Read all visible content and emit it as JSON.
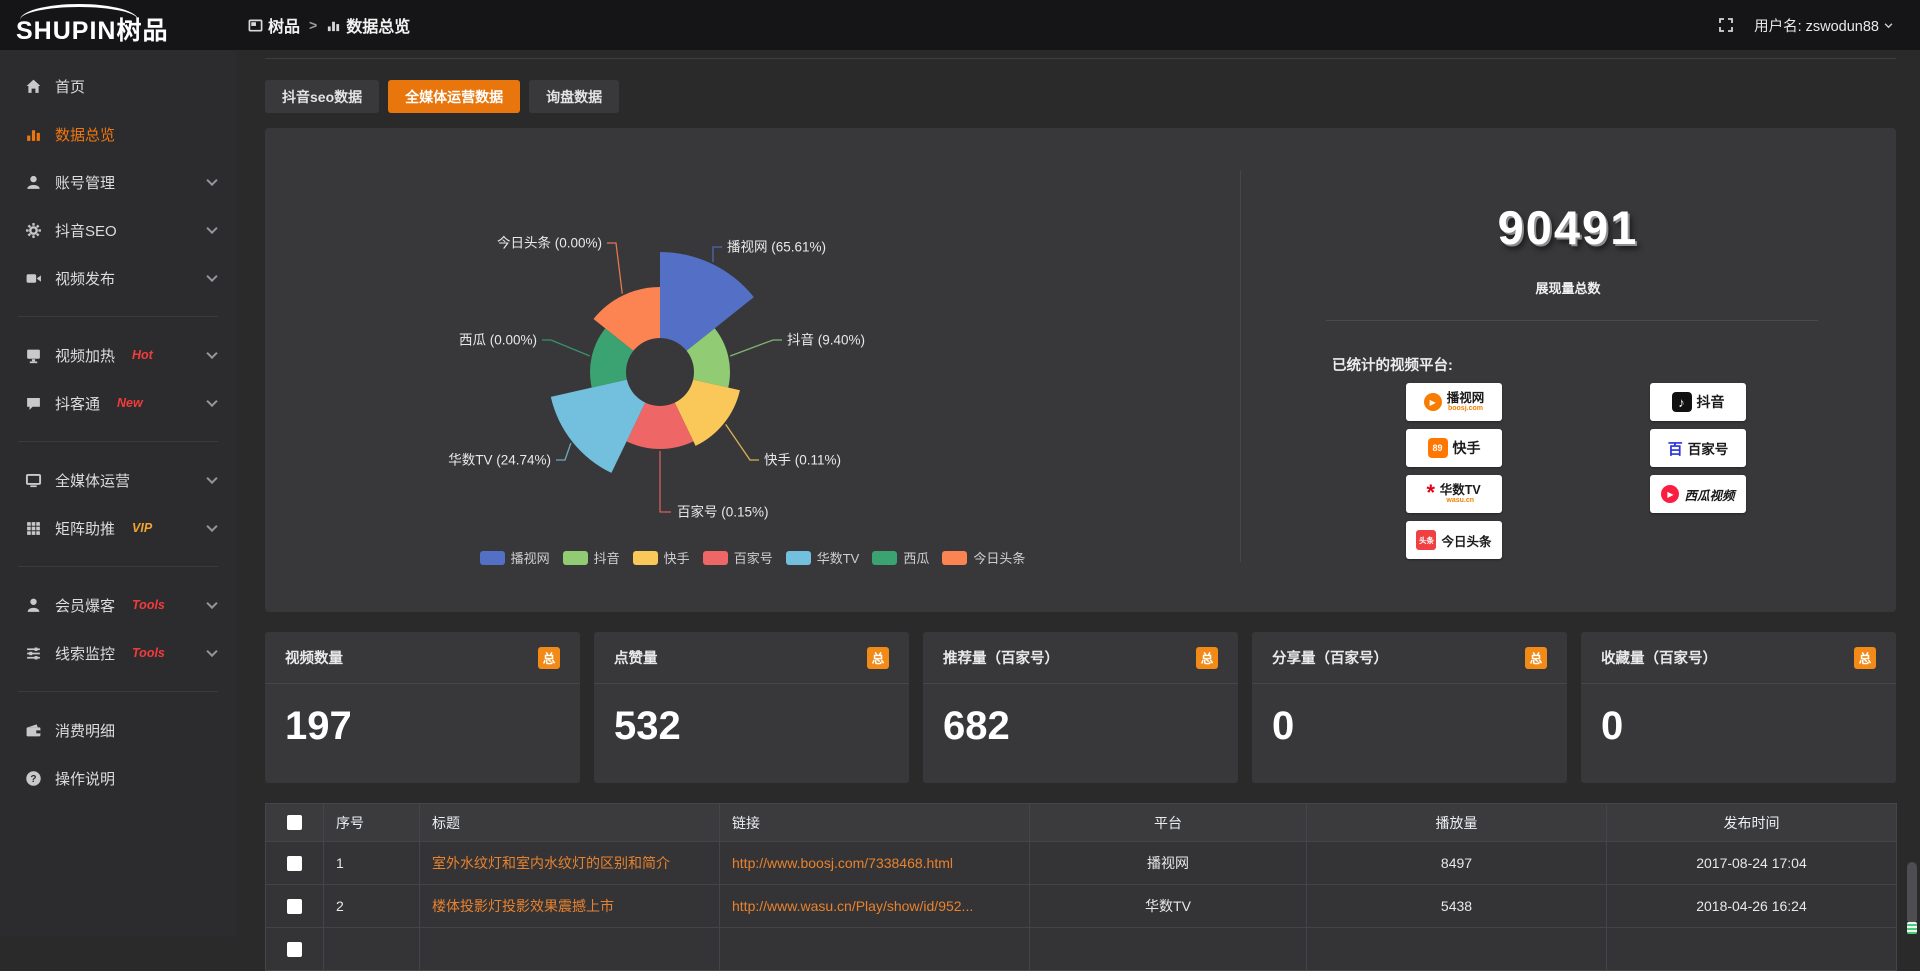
{
  "topbar": {
    "logo_text": "SHUPIN树品",
    "breadcrumb_root": "树品",
    "breadcrumb_sep": ">",
    "breadcrumb_current": "数据总览",
    "username_label": "用户名: zswodun88"
  },
  "sidebar": {
    "items": [
      {
        "label": "首页"
      },
      {
        "label": "数据总览"
      },
      {
        "label": "账号管理"
      },
      {
        "label": "抖音SEO"
      },
      {
        "label": "视频发布"
      },
      {
        "label": "视频加热",
        "badge": "Hot"
      },
      {
        "label": "抖客通",
        "badge": "New"
      },
      {
        "label": "全媒体运营"
      },
      {
        "label": "矩阵助推",
        "badge": "VIP"
      },
      {
        "label": "会员爆客",
        "badge": "Tools"
      },
      {
        "label": "线索监控",
        "badge": "Tools"
      },
      {
        "label": "消费明细"
      },
      {
        "label": "操作说明"
      }
    ],
    "badge_red": "#f23c3c",
    "badge_gold": "#f0a330",
    "active_color": "#ee7610"
  },
  "tabs": [
    {
      "label": "抖音seo数据",
      "active": false
    },
    {
      "label": "全媒体运营数据",
      "active": true
    },
    {
      "label": "询盘数据",
      "active": false
    }
  ],
  "chart_data": {
    "type": "pie",
    "style": "nightingale-rose",
    "unit": "percent",
    "slices": [
      {
        "name": "播视网",
        "value": 65.61,
        "color": "#5470c6"
      },
      {
        "name": "抖音",
        "value": 9.4,
        "color": "#91cc75"
      },
      {
        "name": "快手",
        "value": 0.11,
        "color": "#fac858"
      },
      {
        "name": "百家号",
        "value": 0.15,
        "color": "#ee6666"
      },
      {
        "name": "华数TV",
        "value": 24.74,
        "color": "#73c0de"
      },
      {
        "name": "西瓜",
        "value": 0.0,
        "color": "#3ba272"
      },
      {
        "name": "今日头条",
        "value": 0.0,
        "color": "#fc8452"
      }
    ],
    "label_format": "{name} ({value}%)",
    "legend": [
      "播视网",
      "抖音",
      "快手",
      "百家号",
      "华数TV",
      "西瓜",
      "今日头条"
    ],
    "legend_position": "bottom"
  },
  "summary": {
    "total_value": "90491",
    "total_label": "展现量总数",
    "platforms_title": "已统计的视频平台:",
    "platforms": [
      {
        "name": "播视网",
        "sub": "boosj.com"
      },
      {
        "name": "抖音"
      },
      {
        "name": "快手"
      },
      {
        "name": "百家号"
      },
      {
        "name": "华数TV",
        "sub": "wasu.cn"
      },
      {
        "name": "西瓜视频"
      },
      {
        "name": "今日头条"
      }
    ]
  },
  "stat_cards": [
    {
      "title": "视频数量",
      "badge": "总",
      "value": "197"
    },
    {
      "title": "点赞量",
      "badge": "总",
      "value": "532"
    },
    {
      "title": "推荐量（百家号）",
      "badge": "总",
      "value": "682"
    },
    {
      "title": "分享量（百家号）",
      "badge": "总",
      "value": "0"
    },
    {
      "title": "收藏量（百家号）",
      "badge": "总",
      "value": "0"
    }
  ],
  "table": {
    "headers": [
      "序号",
      "标题",
      "链接",
      "平台",
      "播放量",
      "发布时间"
    ],
    "rows": [
      {
        "index": "1",
        "title": "室外水纹灯和室内水纹灯的区别和简介",
        "link": "http://www.boosj.com/7338468.html",
        "platform": "播视网",
        "views": "8497",
        "time": "2017-08-24 17:04"
      },
      {
        "index": "2",
        "title": "楼体投影灯投影效果震撼上市",
        "link": "http://www.wasu.cn/Play/show/id/952...",
        "platform": "华数TV",
        "views": "5438",
        "time": "2018-04-26 16:24"
      }
    ]
  }
}
